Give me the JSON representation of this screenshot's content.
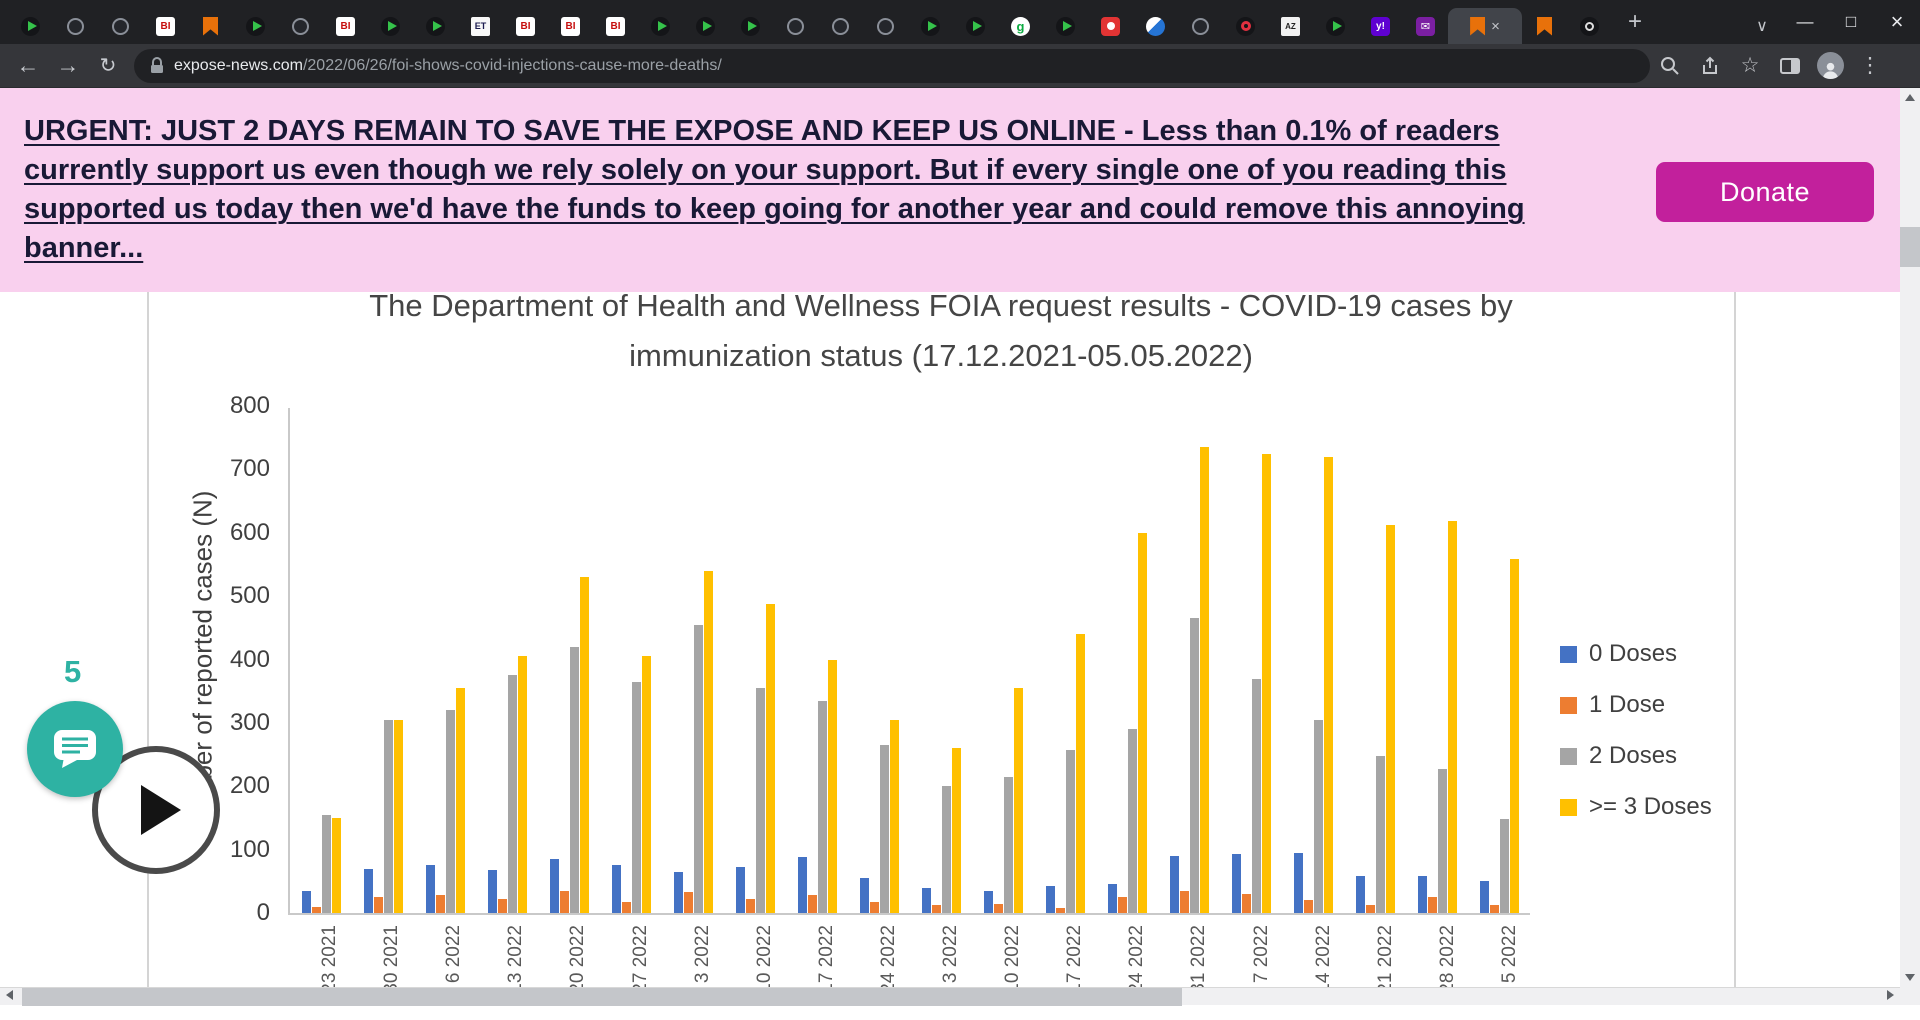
{
  "browser": {
    "tabs": [
      "play",
      "globe",
      "globe",
      "bi",
      "flag",
      "play",
      "globe",
      "bi",
      "play",
      "play",
      "et",
      "bi",
      "bi",
      "bi",
      "play",
      "play",
      "play",
      "globe",
      "globe",
      "globe",
      "play",
      "play",
      "g",
      "play",
      "redperson",
      "blue",
      "globe",
      "redo",
      "az",
      "play",
      "yahoo",
      "mail",
      "flag",
      "flag",
      "ring"
    ],
    "active_tab_index": 32,
    "favicon_labels": {
      "bi": "BI",
      "et": "ET",
      "g": "g",
      "az": "AZ",
      "yahoo": "y!",
      "mail": "✉"
    },
    "url_domain": "expose-news.com",
    "url_path": "/2022/06/26/foi-shows-covid-injections-cause-more-deaths/"
  },
  "icons": {
    "back": "←",
    "forward": "→",
    "reload": "↻",
    "plus": "+",
    "chevron": "∨",
    "minimize": "—",
    "maximize": "□",
    "close": "×",
    "star": "☆",
    "dots": "⋮"
  },
  "banner": {
    "message": "URGENT: JUST 2 DAYS REMAIN TO SAVE THE EXPOSE AND KEEP US ONLINE - Less than 0.1% of readers currently support us even though we rely solely on your support. But if every single one of you reading this supported us today then we'd have the funds to keep going for another year and could remove this annoying banner...",
    "donate_label": "Donate",
    "colors": {
      "background": "#f9d0ee",
      "text": "#191936",
      "button": "#c2209c"
    }
  },
  "chat_widget": {
    "unread_count": "5",
    "color": "#2eb2a3"
  },
  "chart_data": {
    "type": "bar",
    "title": "The Department of Health and Wellness FOIA request results - COVID-19 cases by immunization status (17.12.2021-05.05.2022)",
    "ylabel": "Number of reported cases (N)",
    "ylim": [
      0,
      800
    ],
    "yticks": [
      0,
      100,
      200,
      300,
      400,
      500,
      600,
      700,
      800
    ],
    "grid": false,
    "legend_position": "right",
    "categories": [
      "23 2021",
      "30 2021",
      "n 6 2022",
      "13 2022",
      "20 2022",
      "27 2022",
      "b 3 2022",
      "10 2022",
      "17 2022",
      "24 2022",
      "r 3 2022",
      "10 2022",
      "17 2022",
      "24 2022",
      "31 2022",
      "r 7 2022",
      "14 2022",
      "21 2022",
      "28 2022",
      "y 5 2022"
    ],
    "series": [
      {
        "name": "0 Doses",
        "color": "#4472c4",
        "values": [
          35,
          70,
          75,
          68,
          85,
          75,
          65,
          73,
          88,
          55,
          40,
          35,
          42,
          45,
          90,
          93,
          95,
          58,
          58,
          50
        ]
      },
      {
        "name": "1 Dose",
        "color": "#ed7d31",
        "values": [
          10,
          25,
          28,
          22,
          35,
          18,
          33,
          22,
          28,
          18,
          13,
          15,
          8,
          25,
          35,
          30,
          20,
          13,
          25,
          13
        ]
      },
      {
        "name": "2 Doses",
        "color": "#a5a5a5",
        "values": [
          155,
          305,
          320,
          375,
          420,
          365,
          455,
          355,
          335,
          265,
          200,
          215,
          258,
          290,
          465,
          370,
          305,
          248,
          228,
          148
        ]
      },
      {
        "name": ">= 3 Doses",
        "color": "#ffc000",
        "values": [
          150,
          305,
          355,
          405,
          530,
          405,
          540,
          487,
          400,
          305,
          260,
          355,
          440,
          600,
          735,
          725,
          720,
          612,
          618,
          558
        ]
      }
    ]
  }
}
